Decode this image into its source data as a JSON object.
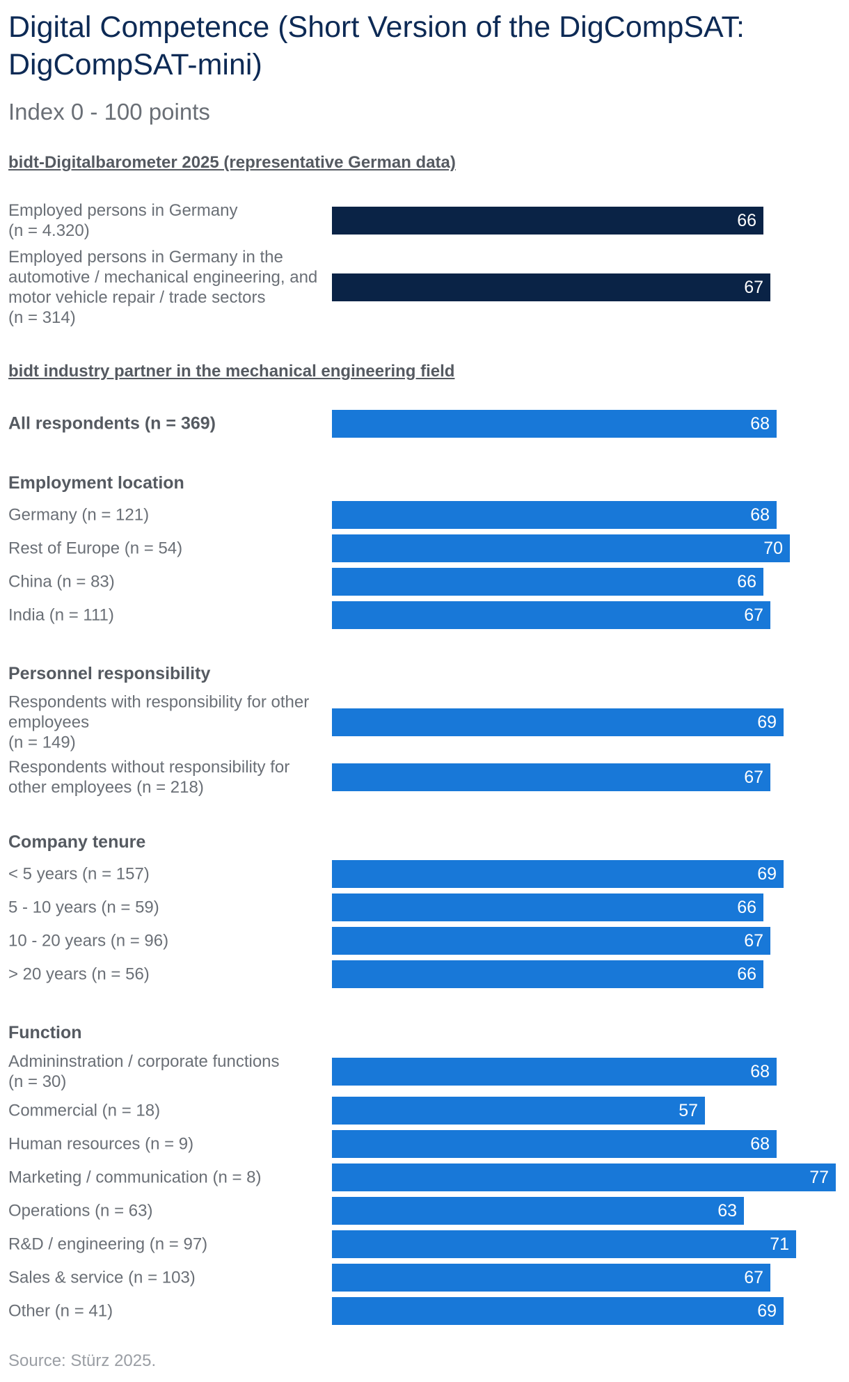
{
  "title": "Digital Competence (Short Version of the DigCompSAT: DigCompSAT-mini)",
  "subtitle": "Index 0 - 100 points",
  "source": "Source: Stürz 2025.",
  "colors": {
    "dark_bar": "#0a2346",
    "blue_bar": "#1878d8",
    "title": "#0d2a55"
  },
  "chart_data": {
    "type": "bar",
    "orientation": "horizontal",
    "title": "Digital Competence (Short Version of the DigCompSAT: DigCompSAT-mini)",
    "subtitle": "Index 0 - 100 points",
    "xlim": [
      0,
      100
    ],
    "sections": [
      {
        "heading": "bidt-Digitalbarometer 2025 (representative German data)",
        "groups": [
          {
            "heading": "",
            "items": [
              {
                "label": "Employed persons in Germany\n(n = 4.320)",
                "value": 66,
                "color": "dark"
              },
              {
                "label": "Employed persons in Germany in the automotive / mechanical engineering, and motor vehicle repair / trade sectors\n(n = 314)",
                "value": 67,
                "color": "dark"
              }
            ]
          }
        ]
      },
      {
        "heading": "bidt industry partner in the mechanical engineering field",
        "groups": [
          {
            "heading": "",
            "items": [
              {
                "label": "All respondents (n = 369)",
                "value": 68,
                "color": "blue",
                "bold": true
              }
            ]
          },
          {
            "heading": "Employment location",
            "items": [
              {
                "label": "Germany (n = 121)",
                "value": 68,
                "color": "blue"
              },
              {
                "label": "Rest of Europe (n = 54)",
                "value": 70,
                "color": "blue"
              },
              {
                "label": "China (n = 83)",
                "value": 66,
                "color": "blue"
              },
              {
                "label": "India (n = 111)",
                "value": 67,
                "color": "blue"
              }
            ]
          },
          {
            "heading": "Personnel responsibility",
            "items": [
              {
                "label": "Respondents with responsibility for other employees\n(n = 149)",
                "value": 69,
                "color": "blue"
              },
              {
                "label": "Respondents without responsibility for other employees (n = 218)",
                "value": 67,
                "color": "blue"
              }
            ]
          },
          {
            "heading": "Company tenure",
            "items": [
              {
                "label": "< 5 years (n = 157)",
                "value": 69,
                "color": "blue"
              },
              {
                "label": "5 - 10 years (n = 59)",
                "value": 66,
                "color": "blue"
              },
              {
                "label": "10 - 20 years (n = 96)",
                "value": 67,
                "color": "blue"
              },
              {
                "label": "> 20 years (n = 56)",
                "value": 66,
                "color": "blue"
              }
            ]
          },
          {
            "heading": "Function",
            "items": [
              {
                "label": "Admininstration / corporate functions\n(n = 30)",
                "value": 68,
                "color": "blue"
              },
              {
                "label": "Commercial (n = 18)",
                "value": 57,
                "color": "blue"
              },
              {
                "label": "Human resources (n = 9)",
                "value": 68,
                "color": "blue"
              },
              {
                "label": "Marketing / communication (n = 8)",
                "value": 77,
                "color": "blue"
              },
              {
                "label": "Operations (n = 63)",
                "value": 63,
                "color": "blue"
              },
              {
                "label": "R&D / engineering (n = 97)",
                "value": 71,
                "color": "blue"
              },
              {
                "label": "Sales & service (n = 103)",
                "value": 67,
                "color": "blue"
              },
              {
                "label": "Other (n = 41)",
                "value": 69,
                "color": "blue"
              }
            ]
          }
        ]
      }
    ]
  }
}
